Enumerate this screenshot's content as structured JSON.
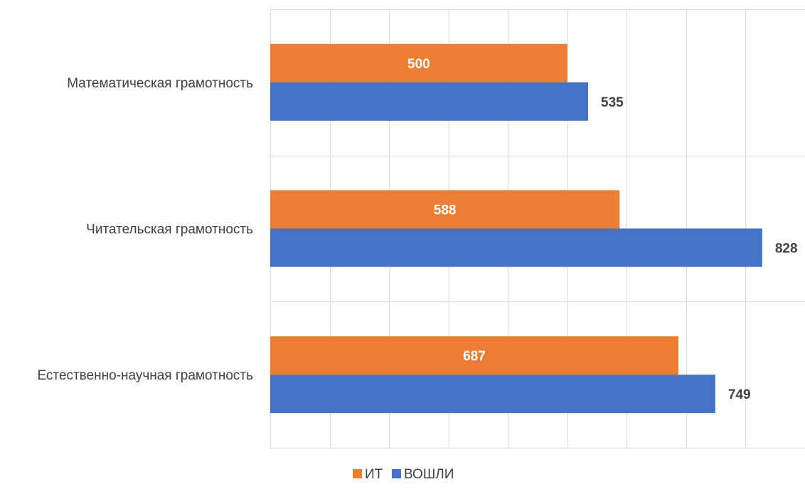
{
  "chart_data": {
    "type": "bar",
    "orientation": "horizontal",
    "categories": [
      "Математическая грамотность",
      "Читательская грамотность",
      "Естественно-научная грамотность"
    ],
    "series": [
      {
        "name": "ИТ",
        "values": [
          500,
          588,
          687
        ],
        "color": "#ED7D31"
      },
      {
        "name": "ВОШЛИ",
        "values": [
          535,
          828,
          749
        ],
        "color": "#4472C4"
      }
    ],
    "xlim": [
      0,
      900
    ],
    "grid": true,
    "data_labels": true,
    "legend_position": "bottom"
  }
}
